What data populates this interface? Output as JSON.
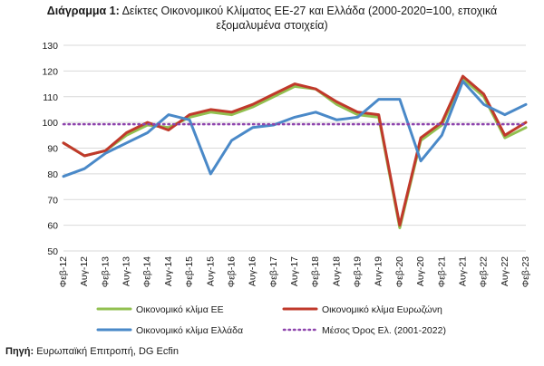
{
  "title": {
    "prefix": "Διάγραμμα 1:",
    "line1": "Δείκτες Οικονομικού Κλίματος ΕΕ-27 και Ελλάδα (2000-2020=100, εποχικά",
    "line2": "εξομαλυμένα στοιχεία)"
  },
  "source": {
    "prefix": "Πηγή:",
    "text": "Ευρωπαϊκή Επιτροπή, DG Ecfin"
  },
  "chart_data": {
    "type": "line",
    "title": "Δείκτες Οικονομικού Κλίματος ΕΕ-27 και Ελλάδα (2000-2020=100, εποχικά εξομαλυμένα στοιχεία)",
    "ylim": [
      50,
      130
    ],
    "yticks": [
      50,
      60,
      70,
      80,
      90,
      100,
      110,
      120,
      130
    ],
    "grid": true,
    "legend_position": "bottom",
    "x_tick_labels": [
      "Φεβ-12",
      "Αυγ-12",
      "Φεβ-13",
      "Αυγ-13",
      "Φεβ-14",
      "Αυγ-14",
      "Φεβ-15",
      "Αυγ-15",
      "Φεβ-16",
      "Αυγ-16",
      "Φεβ-17",
      "Αυγ-17",
      "Φεβ-18",
      "Αυγ-18",
      "Φεβ-19",
      "Αυγ-19",
      "Φεβ-20",
      "Αυγ-20",
      "Φεβ-21",
      "Αυγ-21",
      "Φεβ-22",
      "Αυγ-22",
      "Φεβ-23"
    ],
    "x": [
      "Φεβ-12",
      "Αυγ-12",
      "Φεβ-13",
      "Αυγ-13",
      "Φεβ-14",
      "Αυγ-14",
      "Φεβ-15",
      "Αυγ-15",
      "Φεβ-16",
      "Αυγ-16",
      "Φεβ-17",
      "Αυγ-17",
      "Φεβ-18",
      "Αυγ-18",
      "Φεβ-19",
      "Αυγ-19",
      "Φεβ-20",
      "Αυγ-20",
      "Φεβ-21",
      "Αυγ-21",
      "Φεβ-22",
      "Αυγ-22",
      "Φεβ-23"
    ],
    "series": [
      {
        "name": "Οικονομικό κλίμα ΕΕ",
        "color": "#92c050",
        "style": "solid",
        "values": [
          92,
          87,
          89,
          95,
          99,
          98,
          102,
          104,
          103,
          106,
          110,
          114,
          113,
          107,
          103,
          102,
          59,
          93,
          99,
          117,
          110,
          94,
          98
        ]
      },
      {
        "name": "Οικονομικό κλίμα Ευρωζώνη",
        "color": "#c0392b",
        "style": "solid",
        "values": [
          92,
          87,
          89,
          96,
          100,
          97,
          103,
          105,
          104,
          107,
          111,
          115,
          113,
          108,
          104,
          103,
          60,
          94,
          100,
          118,
          111,
          95,
          100
        ]
      },
      {
        "name": "Οικονομικό κλίμα Ελλάδα",
        "color": "#4a89c8",
        "style": "solid",
        "values": [
          79,
          82,
          88,
          92,
          96,
          103,
          101,
          80,
          93,
          98,
          99,
          102,
          104,
          101,
          102,
          109,
          109,
          85,
          95,
          116,
          107,
          103,
          107
        ]
      },
      {
        "name": "Μέσος Όρος Ελ. (2001-2022)",
        "color": "#8e44ad",
        "style": "dotted",
        "values": [
          99.3,
          99.3,
          99.3,
          99.3,
          99.3,
          99.3,
          99.3,
          99.3,
          99.3,
          99.3,
          99.3,
          99.3,
          99.3,
          99.3,
          99.3,
          99.3,
          99.3,
          99.3,
          99.3,
          99.3,
          99.3,
          99.3,
          99.3
        ]
      }
    ]
  }
}
